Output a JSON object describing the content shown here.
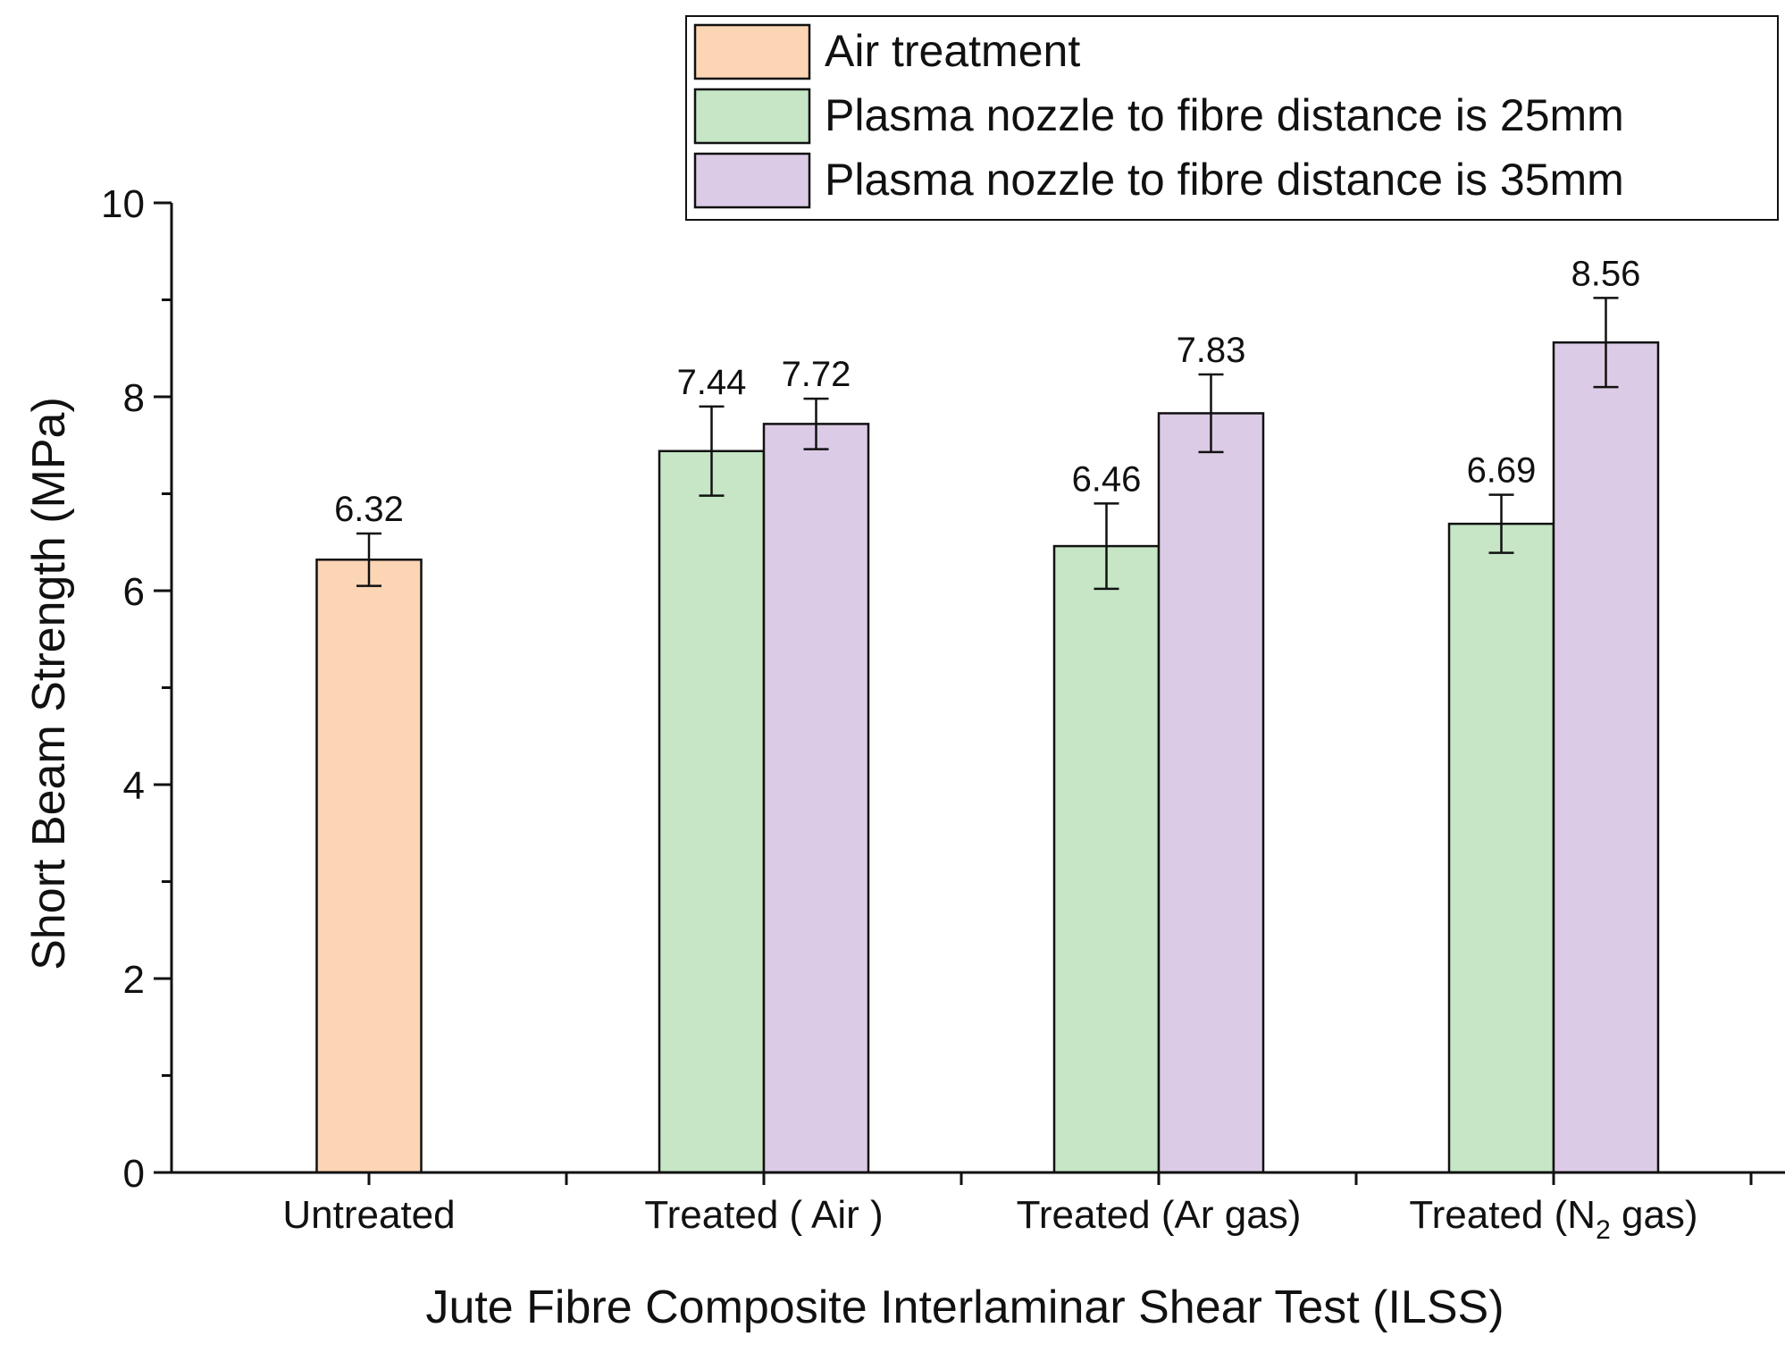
{
  "chart_data": {
    "type": "bar",
    "xlabel": "Jute Fibre Composite Interlaminar Shear Test (ILSS)",
    "ylabel": "Short Beam Strength (MPa)",
    "ylim": [
      0,
      10
    ],
    "yticks": [
      0,
      2,
      4,
      6,
      8,
      10
    ],
    "categories": [
      {
        "label": "Untreated",
        "label_parts": [
          "Untreated"
        ]
      },
      {
        "label": "Treated ( Air )",
        "label_parts": [
          "Treated ( Air )"
        ]
      },
      {
        "label": "Treated (Ar gas)",
        "label_parts": [
          "Treated (Ar gas)"
        ]
      },
      {
        "label": "Treated (N2 gas)",
        "label_parts": [
          "Treated (N",
          "2",
          " gas)"
        ]
      }
    ],
    "legend_position": "top-right",
    "series": [
      {
        "name": "Air treatment",
        "color": "#fcd5b5",
        "values": [
          6.32,
          null,
          null,
          null
        ],
        "errors": [
          0.27,
          null,
          null,
          null
        ],
        "labels": [
          "6.32",
          null,
          null,
          null
        ]
      },
      {
        "name": "Plasma nozzle to fibre distance is 25mm",
        "color": "#c6e6c5",
        "values": [
          null,
          7.44,
          6.46,
          6.69
        ],
        "errors": [
          null,
          0.46,
          0.44,
          0.3
        ],
        "labels": [
          null,
          "7.44",
          "6.46",
          "6.69"
        ]
      },
      {
        "name": "Plasma nozzle to fibre distance is 35mm",
        "color": "#dccbe6",
        "values": [
          null,
          7.72,
          7.83,
          8.56
        ],
        "errors": [
          null,
          0.26,
          0.4,
          0.46
        ],
        "labels": [
          null,
          "7.72",
          "7.83",
          "8.56"
        ]
      }
    ]
  }
}
